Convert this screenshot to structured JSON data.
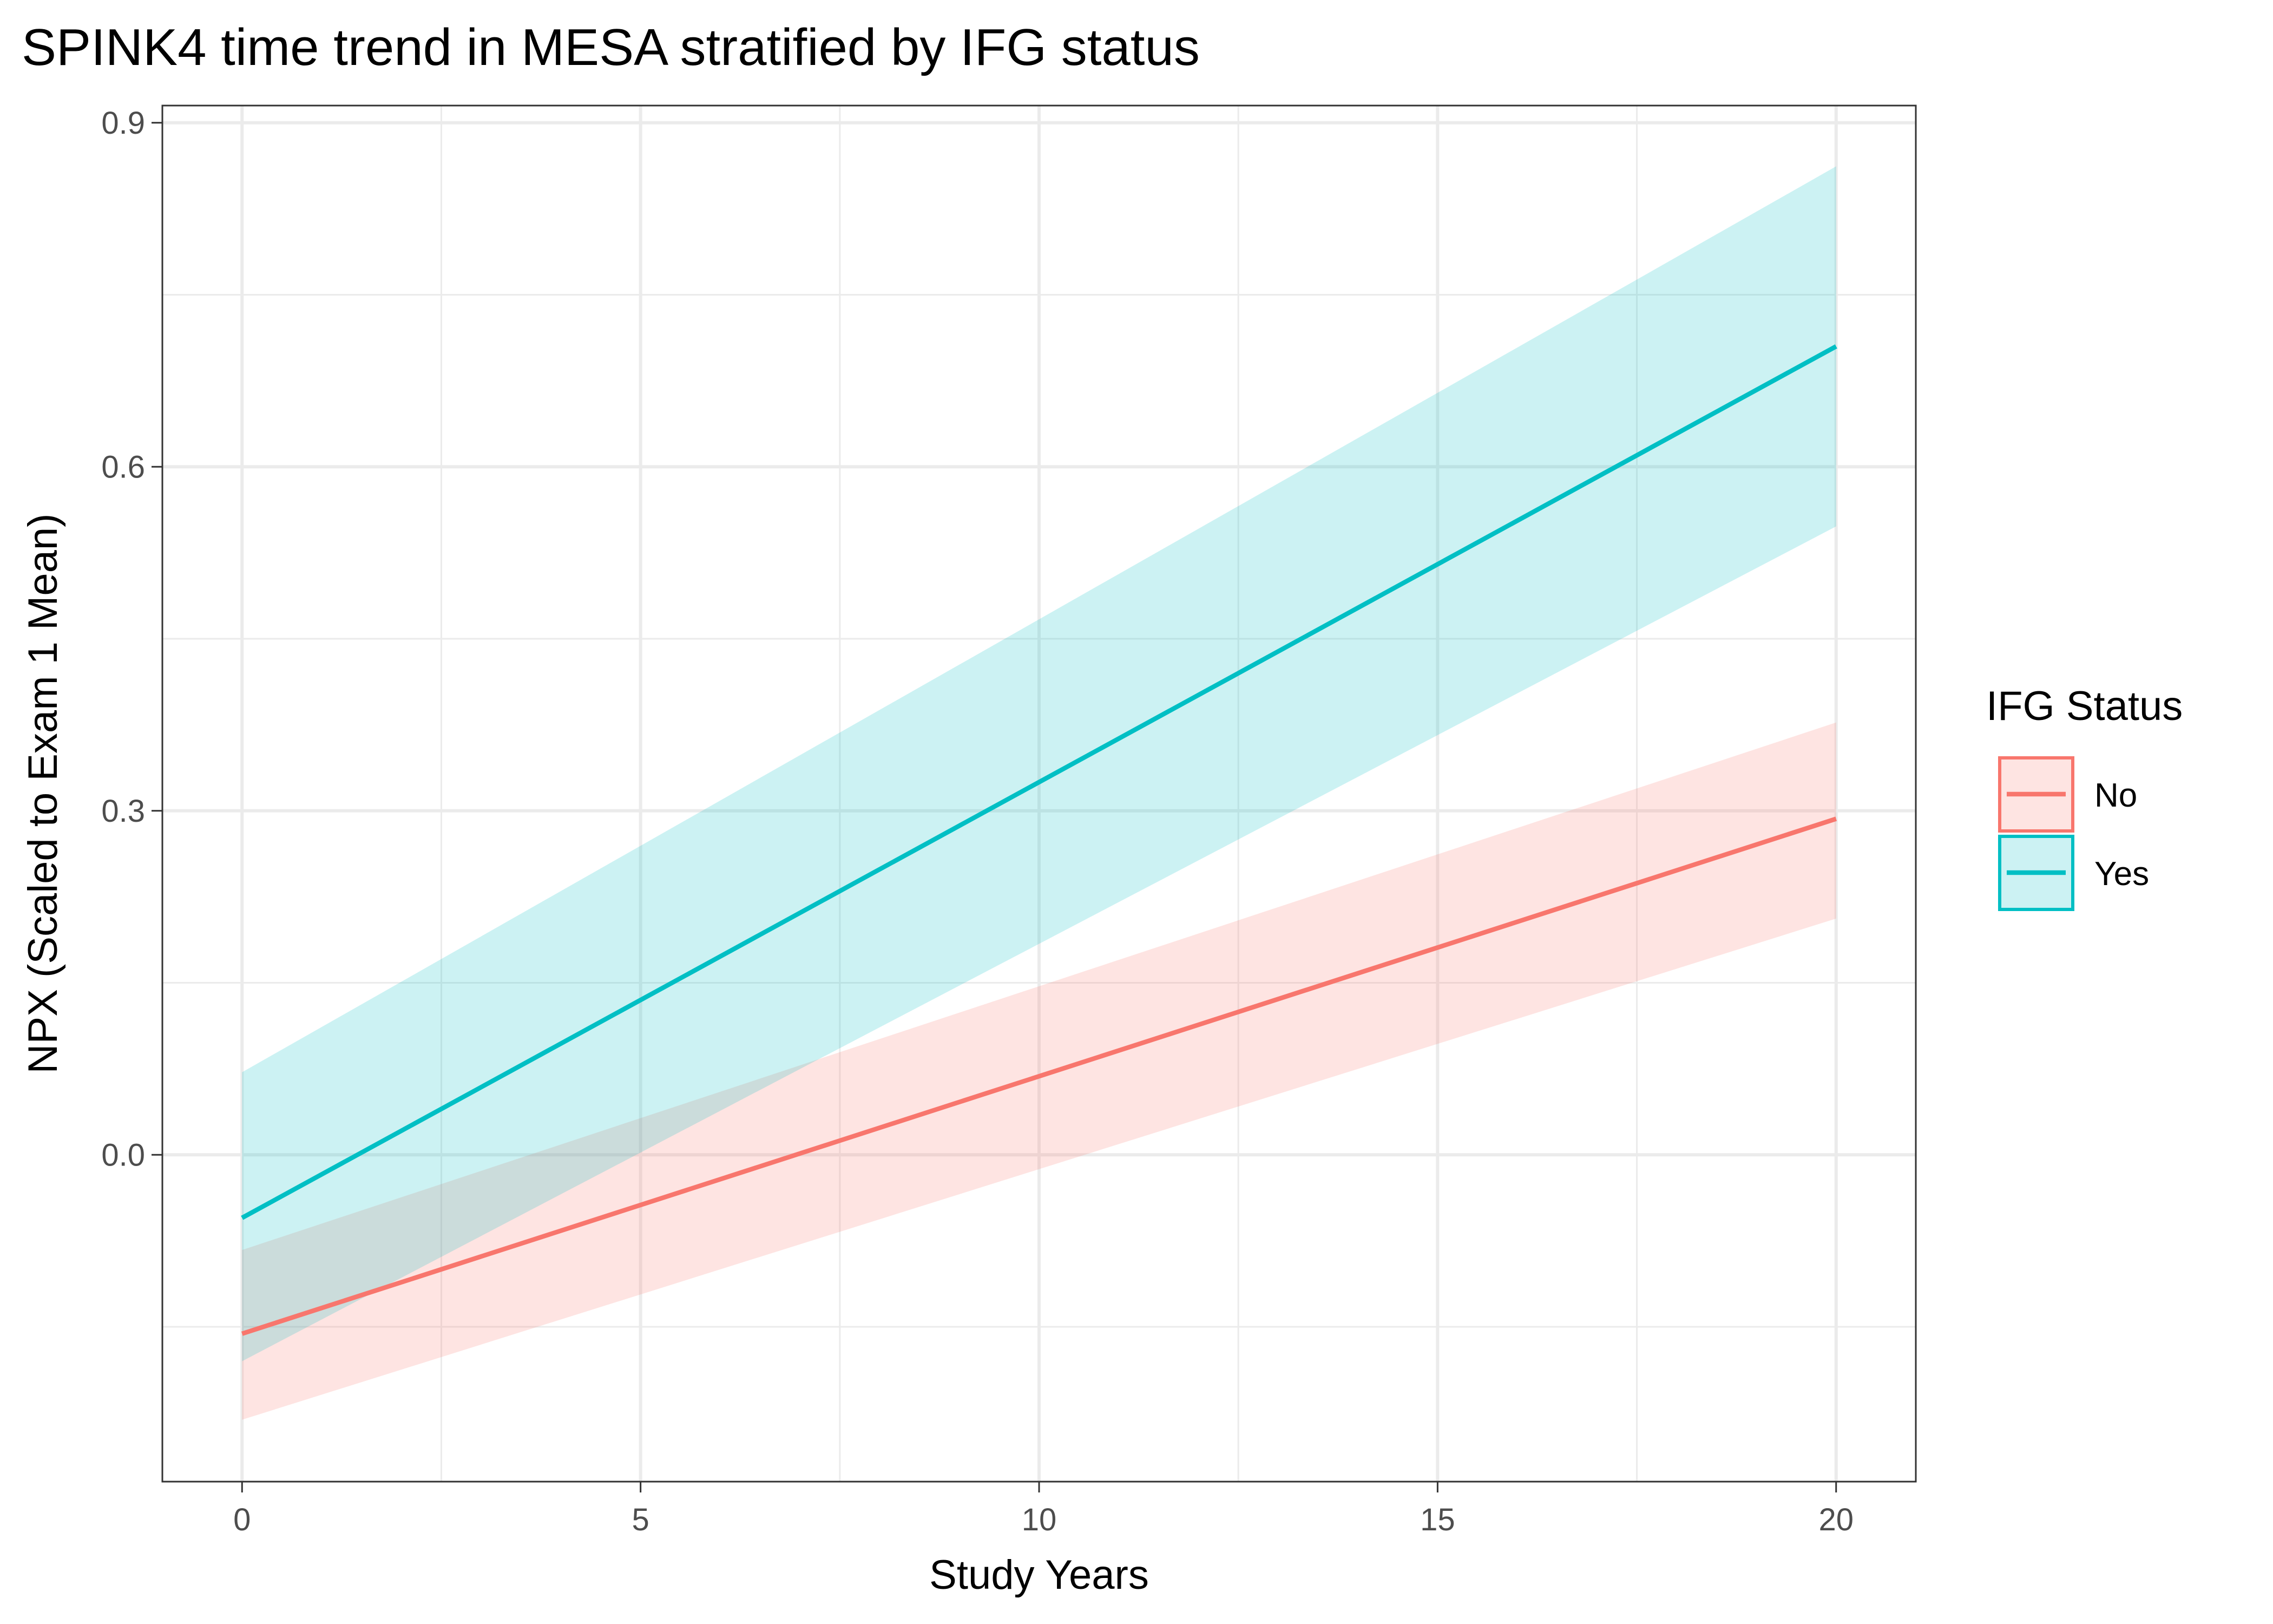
{
  "chart_data": {
    "type": "line",
    "title": "SPINK4 time trend in MESA stratified by IFG status",
    "xlabel": "Study Years",
    "ylabel": "NPX (Scaled to Exam 1 Mean)",
    "xlim": [
      -1,
      21
    ],
    "ylim": [
      -0.285,
      0.915
    ],
    "x_ticks": [
      0,
      5,
      10,
      15,
      20
    ],
    "y_ticks": [
      0.0,
      0.3,
      0.6,
      0.9
    ],
    "x_tick_labels": [
      "0",
      "5",
      "10",
      "15",
      "20"
    ],
    "y_tick_labels": [
      "0.0",
      "0.3",
      "0.6",
      "0.9"
    ],
    "grid": true,
    "legend": {
      "title": "IFG Status",
      "position": "right"
    },
    "series": [
      {
        "name": "No",
        "color": "#F8766D",
        "x": [
          0,
          20
        ],
        "y": [
          -0.156,
          0.293
        ],
        "ci_lower": [
          -0.231,
          0.206
        ],
        "ci_upper": [
          -0.083,
          0.377
        ]
      },
      {
        "name": "Yes",
        "color": "#00BFC4",
        "x": [
          0,
          20
        ],
        "y": [
          -0.055,
          0.705
        ],
        "ci_lower": [
          -0.18,
          0.548
        ],
        "ci_upper": [
          0.072,
          0.862
        ]
      }
    ]
  }
}
